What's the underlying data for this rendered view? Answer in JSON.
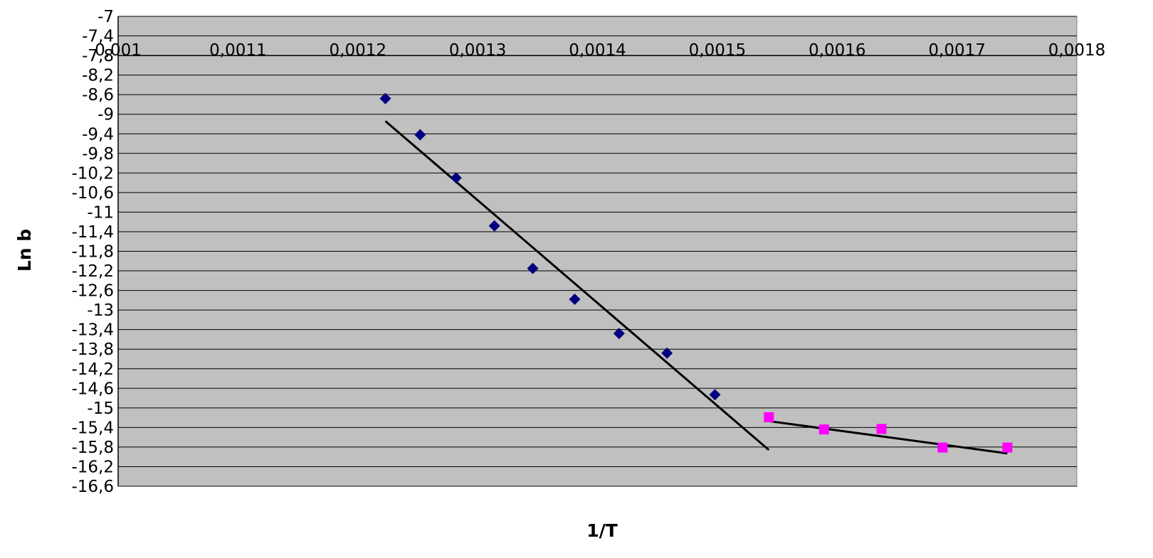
{
  "chart_data": {
    "type": "scatter",
    "title": "",
    "xlabel": "1/T",
    "ylabel": "Ln b",
    "xlim": [
      0.001,
      0.0018
    ],
    "ylim": [
      -16.6,
      -7
    ],
    "x_ticks": [
      0.001,
      0.0011,
      0.0012,
      0.0013,
      0.0014,
      0.0015,
      0.0016,
      0.0017,
      0.0018
    ],
    "x_tick_labels": [
      "0,001",
      "0,0011",
      "0,0012",
      "0,0013",
      "0,0014",
      "0,0015",
      "0,0016",
      "0,0017",
      "0,0018"
    ],
    "x_tick_position": "top",
    "y_ticks": [
      -7,
      -7.4,
      -7.8,
      -8.2,
      -8.6,
      -9,
      -9.4,
      -9.8,
      -10.2,
      -10.6,
      -11,
      -11.4,
      -11.8,
      -12.2,
      -12.6,
      -13,
      -13.4,
      -13.8,
      -14.2,
      -14.6,
      -15,
      -15.4,
      -15.8,
      -16.2,
      -16.6
    ],
    "y_tick_labels": [
      "-7",
      "-7,4",
      "-7,8",
      "-8,2",
      "-8,6",
      "-9",
      "-9,4",
      "-9,8",
      "-10,2",
      "-10,6",
      "-11",
      "-11,4",
      "-11,8",
      "-12,2",
      "-12,6",
      "-13",
      "-13,4",
      "-13,8",
      "-14,2",
      "-14,6",
      "-15",
      "-15,4",
      "-15,8",
      "-16,2",
      "-16,6"
    ],
    "grid": true,
    "legend": false,
    "plot_background": "#c0c0c0",
    "series": [
      {
        "marker": "diamond",
        "color": "#000080",
        "points": [
          [
            0.001223,
            -8.68
          ],
          [
            0.001252,
            -9.42
          ],
          [
            0.001282,
            -10.3
          ],
          [
            0.001314,
            -11.28
          ],
          [
            0.001346,
            -12.15
          ],
          [
            0.001381,
            -12.78
          ],
          [
            0.001418,
            -13.48
          ],
          [
            0.001458,
            -13.88
          ],
          [
            0.001498,
            -14.73
          ]
        ],
        "trendline": {
          "x": [
            0.001223,
            0.001543
          ],
          "y": [
            -9.14,
            -15.86
          ]
        }
      },
      {
        "marker": "square",
        "color": "#ff00ff",
        "points": [
          [
            0.001543,
            -15.19
          ],
          [
            0.001589,
            -15.44
          ],
          [
            0.001637,
            -15.43
          ],
          [
            0.001688,
            -15.81
          ],
          [
            0.001742,
            -15.81
          ]
        ],
        "trendline": {
          "x": [
            0.001543,
            0.001742
          ],
          "y": [
            -15.27,
            -15.93
          ]
        }
      }
    ]
  }
}
